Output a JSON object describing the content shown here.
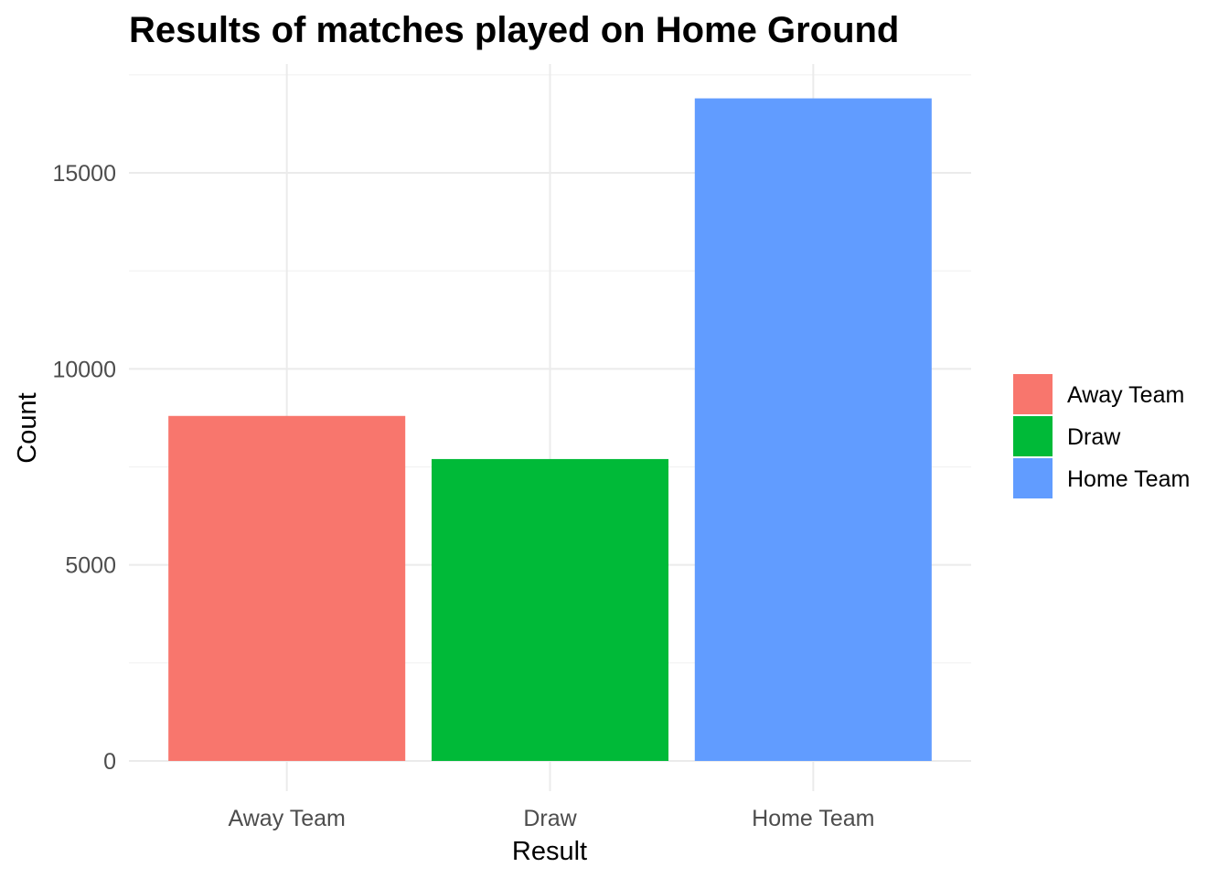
{
  "chart_data": {
    "type": "bar",
    "title": "Results of matches played on Home Ground",
    "xlabel": "Result",
    "ylabel": "Count",
    "categories": [
      "Away Team",
      "Draw",
      "Home Team"
    ],
    "values": [
      8800,
      7700,
      16900
    ],
    "colors": [
      "#F8766D",
      "#00BA38",
      "#619CFF"
    ],
    "ylim": [
      0,
      17800
    ],
    "yticks": [
      0,
      5000,
      10000,
      15000
    ],
    "ytick_labels": [
      "0",
      "5000",
      "10000",
      "15000"
    ],
    "grid": true,
    "legend": {
      "placement": "right",
      "entries": [
        "Away Team",
        "Draw",
        "Home Team"
      ]
    }
  }
}
